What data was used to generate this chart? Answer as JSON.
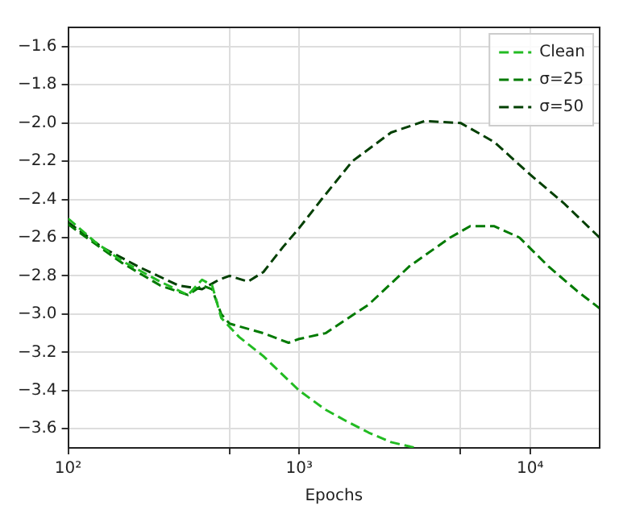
{
  "chart_data": {
    "type": "line",
    "xlabel": "Epochs",
    "log": "x",
    "xlim": [
      100,
      20000
    ],
    "xticks": [
      {
        "value": 100,
        "label": "10²"
      },
      {
        "value": 500,
        "label": null
      },
      {
        "value": 1000,
        "label": "10³"
      },
      {
        "value": 5000,
        "label": null
      },
      {
        "value": 10000,
        "label": "10⁴"
      }
    ],
    "ylim": [
      -3.7,
      -1.5
    ],
    "yticks": [
      {
        "value": -3.6,
        "label": "−3.6"
      },
      {
        "value": -3.4,
        "label": "−3.4"
      },
      {
        "value": -3.2,
        "label": "−3.2"
      },
      {
        "value": -3.0,
        "label": "−3.0"
      },
      {
        "value": -2.8,
        "label": "−2.8"
      },
      {
        "value": -2.6,
        "label": "−2.6"
      },
      {
        "value": -2.4,
        "label": "−2.4"
      },
      {
        "value": -2.2,
        "label": "−2.2"
      },
      {
        "value": -2.0,
        "label": "−2.0"
      },
      {
        "value": -1.8,
        "label": "−1.8"
      },
      {
        "value": -1.6,
        "label": "−1.6"
      }
    ],
    "grid": true,
    "legend": "top right",
    "line_style": "dashed",
    "marker": "none",
    "series": [
      {
        "name": "Clean",
        "color": "#22bb22",
        "x": [
          100,
          130,
          170,
          250,
          330,
          380,
          420,
          460,
          550,
          700,
          1000,
          1300,
          1600,
          2000,
          2500,
          3200
        ],
        "values": [
          -2.5,
          -2.62,
          -2.72,
          -2.83,
          -2.9,
          -2.82,
          -2.85,
          -3.02,
          -3.12,
          -3.22,
          -3.4,
          -3.5,
          -3.56,
          -3.62,
          -3.67,
          -3.7
        ]
      },
      {
        "name": "σ=25",
        "color": "#007a00",
        "x": [
          100,
          130,
          170,
          250,
          330,
          380,
          420,
          460,
          500,
          700,
          900,
          1000,
          1300,
          2000,
          3000,
          4500,
          5500,
          7000,
          9000,
          12000,
          16000,
          20000
        ],
        "values": [
          -2.53,
          -2.63,
          -2.73,
          -2.85,
          -2.9,
          -2.85,
          -2.87,
          -3.0,
          -3.05,
          -3.1,
          -3.15,
          -3.13,
          -3.1,
          -2.95,
          -2.75,
          -2.6,
          -2.54,
          -2.54,
          -2.6,
          -2.75,
          -2.88,
          -2.97
        ]
      },
      {
        "name": "σ=50",
        "color": "#003f00",
        "x": [
          100,
          140,
          200,
          300,
          380,
          450,
          500,
          600,
          700,
          850,
          1000,
          1250,
          1700,
          2500,
          3500,
          5000,
          7000,
          10000,
          14000,
          20000
        ],
        "values": [
          -2.52,
          -2.65,
          -2.75,
          -2.85,
          -2.87,
          -2.82,
          -2.8,
          -2.83,
          -2.78,
          -2.65,
          -2.55,
          -2.4,
          -2.2,
          -2.05,
          -1.99,
          -2.0,
          -2.1,
          -2.27,
          -2.42,
          -2.6
        ]
      }
    ]
  }
}
